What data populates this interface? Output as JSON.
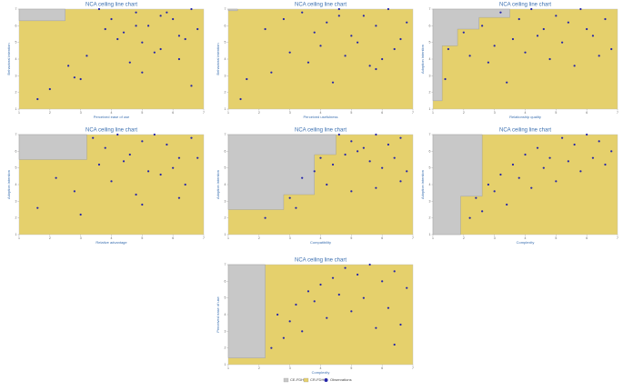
{
  "chart_data": [
    {
      "type": "scatter",
      "title": "NCA ceiling line chart",
      "x_label": "Perceived ease of use",
      "y_label": "Behavioral intention",
      "xlim": [
        1,
        7
      ],
      "ylim": [
        1,
        7
      ],
      "xticks": [
        1,
        2,
        3,
        4,
        5,
        6,
        7
      ],
      "yticks": [
        1,
        2,
        3,
        4,
        5,
        6,
        7
      ],
      "ceiling": {
        "x": [
          1,
          2.5
        ],
        "y": [
          6.3,
          7
        ]
      },
      "x": [
        3.6,
        4,
        4.4,
        4.8,
        5,
        5.2,
        5.6,
        6,
        6.2,
        6.6,
        6.8,
        3.2,
        2.6,
        4.6,
        5.4,
        5.8,
        6.4,
        2,
        3,
        4.2,
        5,
        6.6,
        1.6,
        2.8,
        4.8,
        5.6,
        6.2,
        3.8
      ],
      "values": [
        7,
        6.4,
        5.6,
        6.8,
        5,
        6,
        4.6,
        6.4,
        5.4,
        7,
        5.8,
        4.2,
        3.6,
        3.8,
        4.4,
        6.8,
        5.2,
        2.2,
        2.8,
        5.2,
        3.2,
        2.4,
        1.6,
        2.9,
        6,
        6.6,
        4,
        5.8
      ]
    },
    {
      "type": "scatter",
      "title": "NCA ceiling line chart",
      "x_label": "Perceived usefulness",
      "y_label": "Behavioral intention",
      "xlim": [
        1,
        7
      ],
      "ylim": [
        1,
        7
      ],
      "xticks": [
        1,
        2,
        3,
        4,
        5,
        6,
        7
      ],
      "yticks": [
        1,
        2,
        3,
        4,
        5,
        6,
        7
      ],
      "ceiling": {
        "x": [
          1,
          1.3
        ],
        "y": [
          6.9,
          7
        ]
      },
      "x": [
        2.2,
        2.8,
        3.4,
        3.8,
        4.2,
        4.6,
        5,
        5.4,
        5.8,
        6.2,
        6.6,
        3,
        4,
        4.8,
        5.6,
        6.4,
        1.6,
        2.4,
        3.6,
        4.4,
        5.2,
        6,
        6.8,
        1.4,
        5.8,
        4.6
      ],
      "values": [
        5.8,
        6.4,
        6.8,
        5.6,
        6.2,
        7,
        5.4,
        6.6,
        6,
        7,
        5.2,
        4.4,
        4.8,
        4.2,
        3.6,
        4.6,
        2.8,
        3.2,
        3.8,
        2.6,
        5,
        4,
        6.2,
        1.6,
        3.4,
        6.6
      ]
    },
    {
      "type": "scatter",
      "title": "NCA ceiling line chart",
      "x_label": "Relationship quality",
      "y_label": "Adoption intention",
      "xlim": [
        1,
        7
      ],
      "ylim": [
        1,
        7
      ],
      "xticks": [
        1,
        2,
        3,
        4,
        5,
        6,
        7
      ],
      "yticks": [
        1,
        2,
        3,
        4,
        5,
        6,
        7
      ],
      "ceiling": {
        "x": [
          1,
          1.3,
          1.8,
          2.5,
          3.5
        ],
        "y": [
          1.5,
          4.8,
          5.8,
          6.5,
          7
        ]
      },
      "x": [
        1.5,
        2,
        2.6,
        3.2,
        3.8,
        4.2,
        4.6,
        5,
        5.4,
        5.8,
        6.2,
        6.6,
        3,
        3.6,
        4.4,
        5.2,
        6,
        6.8,
        2.2,
        2.8,
        4,
        4.8,
        5.6,
        6.4,
        1.4,
        3.4
      ],
      "values": [
        4.6,
        5.6,
        6,
        6.8,
        6.4,
        7,
        5.8,
        6.6,
        6.2,
        7,
        5.4,
        6.4,
        4.8,
        5.2,
        5.4,
        5,
        5.8,
        4.6,
        4.2,
        3.8,
        4.4,
        4,
        3.6,
        4.2,
        2.8,
        2.6
      ]
    },
    {
      "type": "scatter",
      "title": "NCA ceiling line chart",
      "x_label": "Relative advantage",
      "y_label": "Adoption intention",
      "xlim": [
        1,
        7
      ],
      "ylim": [
        1,
        7
      ],
      "xticks": [
        1,
        2,
        3,
        4,
        5,
        6,
        7
      ],
      "yticks": [
        1,
        2,
        3,
        4,
        5,
        6,
        7
      ],
      "ceiling": {
        "x": [
          1,
          3.2
        ],
        "y": [
          5.5,
          7
        ]
      },
      "x": [
        3.4,
        3.8,
        4.2,
        4.6,
        5,
        5.4,
        5.8,
        6.2,
        6.6,
        3.6,
        4.4,
        5.2,
        6,
        6.8,
        2.2,
        2.8,
        4,
        4.8,
        5.6,
        6.4,
        1.6,
        3,
        5,
        6.2
      ],
      "values": [
        6.8,
        6.2,
        7,
        5.8,
        6.6,
        7,
        6.4,
        5.6,
        6.8,
        5.2,
        5.4,
        4.8,
        5,
        5.6,
        4.4,
        3.6,
        4.2,
        3.4,
        4.6,
        4,
        2.6,
        2.2,
        2.8,
        3.2
      ]
    },
    {
      "type": "scatter",
      "title": "NCA ceiling line chart",
      "x_label": "Compatibility",
      "y_label": "Adoption intention",
      "xlim": [
        1,
        7
      ],
      "ylim": [
        1,
        7
      ],
      "xticks": [
        1,
        2,
        3,
        4,
        5,
        6,
        7
      ],
      "yticks": [
        1,
        2,
        3,
        4,
        5,
        6,
        7
      ],
      "ceiling": {
        "x": [
          1,
          2.8,
          3.8,
          4.5
        ],
        "y": [
          2.5,
          3.4,
          5.8,
          7
        ]
      },
      "x": [
        4.6,
        5,
        5.4,
        5.8,
        6.2,
        6.6,
        4,
        4.4,
        4.8,
        5.2,
        5.6,
        6,
        6.4,
        6.8,
        3,
        3.4,
        3.8,
        4.2,
        5,
        5.8,
        6.6,
        3.2,
        2.2
      ],
      "values": [
        7,
        6.6,
        6.2,
        7,
        6.4,
        6.8,
        5.6,
        5.2,
        5.8,
        6,
        5.4,
        5,
        5.6,
        4.8,
        3.2,
        4.4,
        4.8,
        4,
        3.6,
        3.8,
        4.2,
        2.6,
        2
      ]
    },
    {
      "type": "scatter",
      "title": "NCA ceiling line chart",
      "x_label": "Complexity",
      "y_label": "Adoption intention",
      "xlim": [
        1,
        7
      ],
      "ylim": [
        1,
        7
      ],
      "xticks": [
        1,
        2,
        3,
        4,
        5,
        6,
        7
      ],
      "yticks": [
        1,
        2,
        3,
        4,
        5,
        6,
        7
      ],
      "ceiling": {
        "x": [
          1,
          1.9,
          2.6
        ],
        "y": [
          1,
          3.3,
          7
        ]
      },
      "x": [
        2.4,
        2.8,
        3.2,
        3.6,
        4,
        4.4,
        4.8,
        5.2,
        5.6,
        6,
        6.4,
        6.8,
        3,
        3.8,
        4.6,
        5.4,
        6.2,
        2.6,
        3.4,
        4.2,
        5,
        5.8,
        6.6,
        2.2
      ],
      "values": [
        3.2,
        4,
        4.6,
        5.2,
        5.8,
        6.2,
        5.6,
        6.8,
        6.4,
        7,
        6.6,
        6,
        3.6,
        4.4,
        5,
        5.4,
        5.6,
        2.4,
        2.8,
        3.8,
        4.2,
        4.8,
        5.2,
        2
      ]
    },
    {
      "type": "scatter",
      "title": "NCA ceiling line chart",
      "x_label": "Complexity",
      "y_label": "Perceived ease of use",
      "xlim": [
        1,
        7
      ],
      "ylim": [
        1,
        7
      ],
      "xticks": [
        1,
        2,
        3,
        4,
        5,
        6,
        7
      ],
      "yticks": [
        1,
        2,
        3,
        4,
        5,
        6,
        7
      ],
      "ceiling": {
        "x": [
          1,
          2.2
        ],
        "y": [
          1.4,
          7
        ]
      },
      "x": [
        3.2,
        3.6,
        4,
        4.4,
        4.8,
        5.2,
        5.6,
        6,
        6.4,
        6.8,
        2.6,
        3,
        3.8,
        4.6,
        5.4,
        6.2,
        6.6,
        2.8,
        3.4,
        4.2,
        5,
        5.8,
        6.4,
        2.4
      ],
      "values": [
        4.6,
        5.4,
        5.8,
        6.2,
        6.8,
        6.4,
        7,
        6,
        6.6,
        5.6,
        4,
        3.6,
        4.8,
        5.2,
        5,
        4.4,
        3.4,
        2.6,
        3,
        3.8,
        4.2,
        3.2,
        2.2,
        2
      ]
    }
  ],
  "legend": [
    {
      "name": "CE-FDH",
      "color": "#c8c8c8"
    },
    {
      "name": "CR-FDH",
      "color": "#e5d06c"
    },
    {
      "name": "Observations",
      "color": "#2424a8"
    }
  ]
}
